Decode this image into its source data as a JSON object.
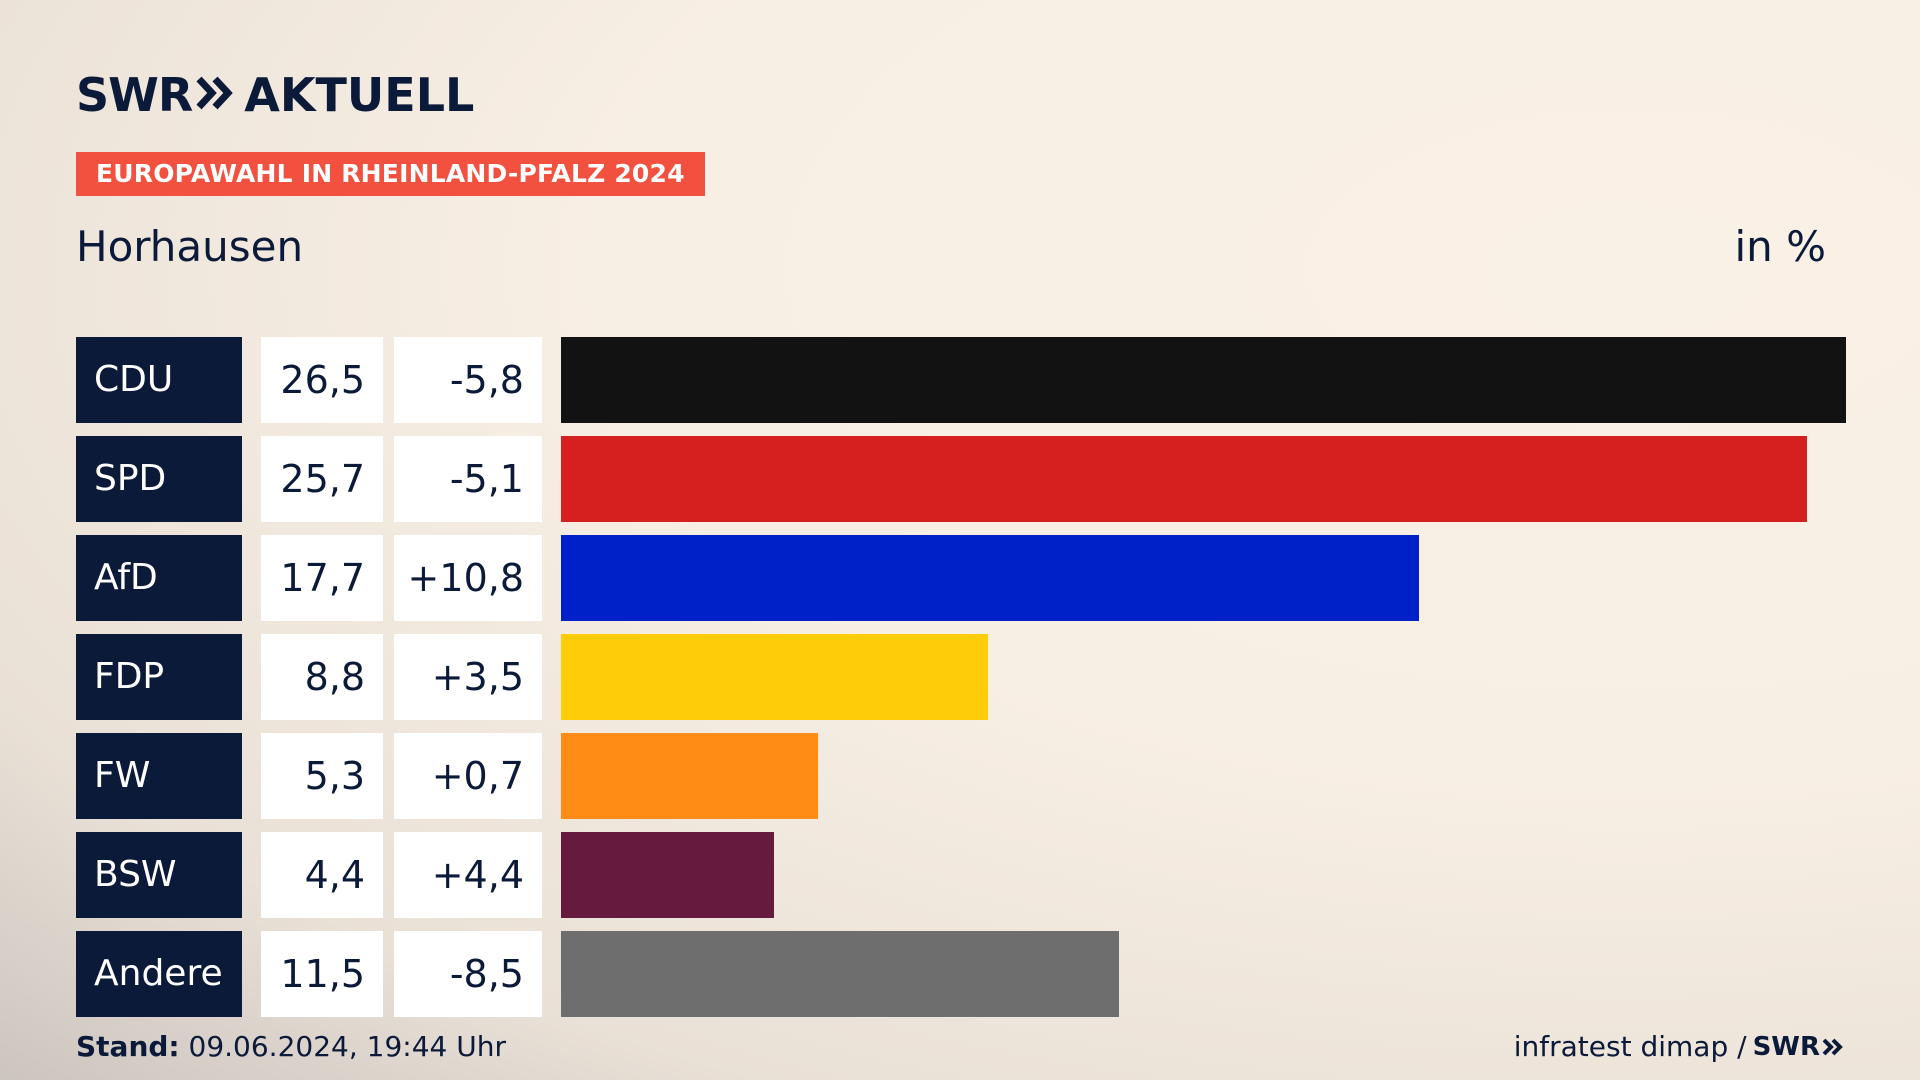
{
  "header": {
    "brand": "SWR",
    "brand_suffix": "AKTUELL",
    "badge": "EUROPAWAHL IN RHEINLAND-PFALZ 2024",
    "region": "Horhausen",
    "unit": "in %"
  },
  "footer": {
    "stand_label": "Stand:",
    "stand_value": " 09.06.2024, 19:44 Uhr",
    "source": "infratest dimap /",
    "source_brand": "SWR"
  },
  "icons": {
    "logo_chevron": "double-chevron-right-icon"
  },
  "chart_data": {
    "type": "bar",
    "orientation": "horizontal",
    "categories": [
      "CDU",
      "SPD",
      "AfD",
      "FDP",
      "FW",
      "BSW",
      "Andere"
    ],
    "values": [
      26.5,
      25.7,
      17.7,
      8.8,
      5.3,
      4.4,
      11.5
    ],
    "value_labels": [
      "26,5",
      "25,7",
      "17,7",
      "8,8",
      "5,3",
      "4,4",
      "11,5"
    ],
    "diffs": [
      -5.8,
      -5.1,
      10.8,
      3.5,
      0.7,
      4.4,
      -8.5
    ],
    "diff_labels": [
      "-5,8",
      "-5,1",
      "+10,8",
      "+3,5",
      "+0,7",
      "+4,4",
      "-8,5"
    ],
    "colors": [
      "#121212",
      "#d62020",
      "#0020c8",
      "#ffcc0a",
      "#ff8c14",
      "#661a3d",
      "#6e6e6e"
    ],
    "xlim": [
      0,
      26.5
    ],
    "grid": false,
    "legend": "none"
  }
}
